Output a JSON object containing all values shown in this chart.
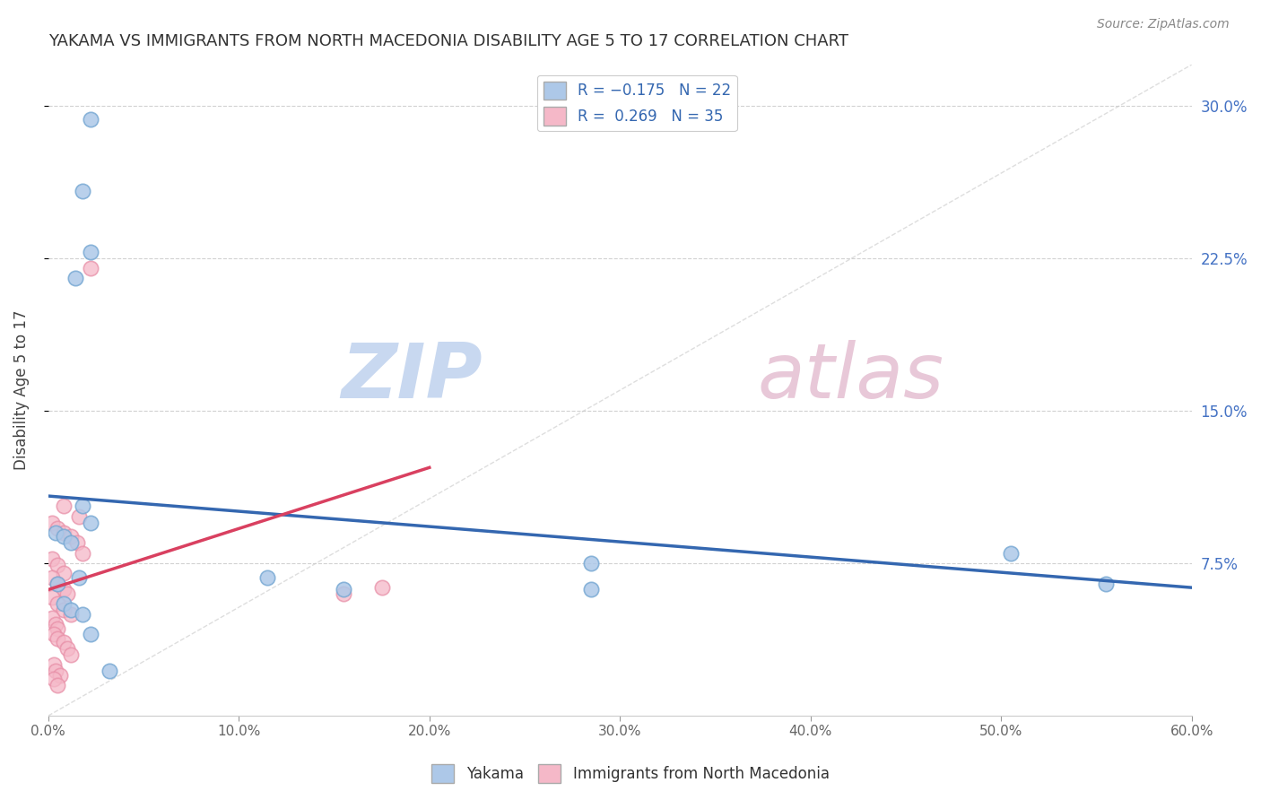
{
  "title": "YAKAMA VS IMMIGRANTS FROM NORTH MACEDONIA DISABILITY AGE 5 TO 17 CORRELATION CHART",
  "source": "Source: ZipAtlas.com",
  "ylabel": "Disability Age 5 to 17",
  "xlim": [
    0.0,
    0.6
  ],
  "ylim": [
    0.0,
    0.32
  ],
  "xtick_labels": [
    "0.0%",
    "10.0%",
    "20.0%",
    "30.0%",
    "40.0%",
    "50.0%",
    "60.0%"
  ],
  "xtick_values": [
    0.0,
    0.1,
    0.2,
    0.3,
    0.4,
    0.5,
    0.6
  ],
  "ytick_labels_right": [
    "7.5%",
    "15.0%",
    "22.5%",
    "30.0%"
  ],
  "ytick_values": [
    0.075,
    0.15,
    0.225,
    0.3
  ],
  "yakama_R": -0.175,
  "yakama_N": 22,
  "macedonia_R": 0.269,
  "macedonia_N": 35,
  "yakama_color": "#adc8e8",
  "yakama_line_color": "#3467b0",
  "yakama_edge_color": "#7aaad4",
  "macedonia_color": "#f5b8c8",
  "macedonia_line_color": "#d94060",
  "macedonia_edge_color": "#e890a8",
  "watermark_zip_color": "#c8d8f0",
  "watermark_atlas_color": "#e8c8d0",
  "background_color": "#ffffff",
  "grid_color": "#cccccc",
  "diagonal_color": "#d0d0d0",
  "yakama_x": [
    0.022,
    0.018,
    0.022,
    0.014,
    0.018,
    0.022,
    0.004,
    0.008,
    0.012,
    0.016,
    0.115,
    0.155,
    0.285,
    0.285,
    0.505,
    0.555,
    0.005,
    0.008,
    0.012,
    0.018,
    0.022,
    0.032
  ],
  "yakama_y": [
    0.293,
    0.258,
    0.228,
    0.215,
    0.103,
    0.095,
    0.09,
    0.088,
    0.085,
    0.068,
    0.068,
    0.062,
    0.075,
    0.062,
    0.08,
    0.065,
    0.065,
    0.055,
    0.052,
    0.05,
    0.04,
    0.022
  ],
  "macedonia_x": [
    0.022,
    0.008,
    0.016,
    0.002,
    0.005,
    0.008,
    0.012,
    0.015,
    0.018,
    0.002,
    0.005,
    0.008,
    0.002,
    0.005,
    0.008,
    0.01,
    0.002,
    0.005,
    0.008,
    0.012,
    0.175,
    0.002,
    0.004,
    0.005,
    0.003,
    0.005,
    0.008,
    0.01,
    0.012,
    0.155,
    0.003,
    0.004,
    0.006,
    0.003,
    0.005
  ],
  "macedonia_y": [
    0.22,
    0.103,
    0.098,
    0.095,
    0.092,
    0.09,
    0.088,
    0.085,
    0.08,
    0.077,
    0.074,
    0.07,
    0.068,
    0.065,
    0.062,
    0.06,
    0.058,
    0.055,
    0.052,
    0.05,
    0.063,
    0.048,
    0.045,
    0.043,
    0.04,
    0.038,
    0.036,
    0.033,
    0.03,
    0.06,
    0.025,
    0.022,
    0.02,
    0.018,
    0.015
  ],
  "yakama_line_x0": 0.0,
  "yakama_line_x1": 0.6,
  "yakama_line_y0": 0.108,
  "yakama_line_y1": 0.063,
  "macedonia_line_x0": 0.0,
  "macedonia_line_x1": 0.2,
  "macedonia_line_y0": 0.062,
  "macedonia_line_y1": 0.122
}
